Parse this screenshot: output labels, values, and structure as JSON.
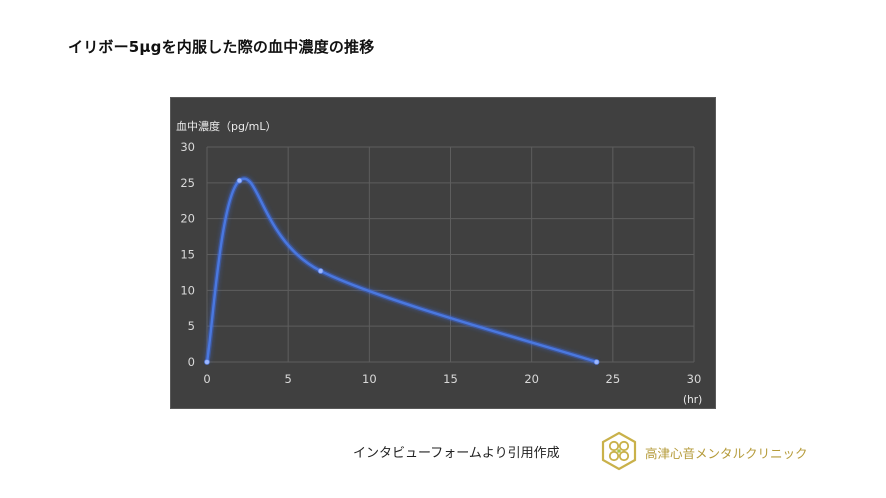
{
  "page": {
    "title": "イリボー5μgを内服した際の血中濃度の推移"
  },
  "footer": {
    "source_note": "インタビューフォームより引用作成",
    "clinic_name": "高津心音メンタルクリニック",
    "logo_icon": "clover-hexagon-logo-icon"
  },
  "colors": {
    "panel_bg": "#404040",
    "grid": "#5e5e5e",
    "axis_text": "#d9d9d9",
    "series": "#4a78e0",
    "series_glow": "#3b6ef0",
    "brand": "#b59b3a"
  },
  "chart_data": {
    "type": "line",
    "title": "",
    "xlabel": "(hr)",
    "ylabel": "血中濃度（pg/mL）",
    "xlim": [
      0,
      30
    ],
    "ylim": [
      0,
      30
    ],
    "x_ticks": [
      0,
      5,
      10,
      15,
      20,
      25,
      30
    ],
    "y_ticks": [
      0,
      5,
      10,
      15,
      20,
      25,
      30
    ],
    "grid": true,
    "smooth": true,
    "series": [
      {
        "points": [
          {
            "x": 0,
            "y": 0
          },
          {
            "x": 2,
            "y": 25.3
          },
          {
            "x": 7,
            "y": 12.7
          },
          {
            "x": 24,
            "y": 0
          }
        ]
      }
    ]
  }
}
